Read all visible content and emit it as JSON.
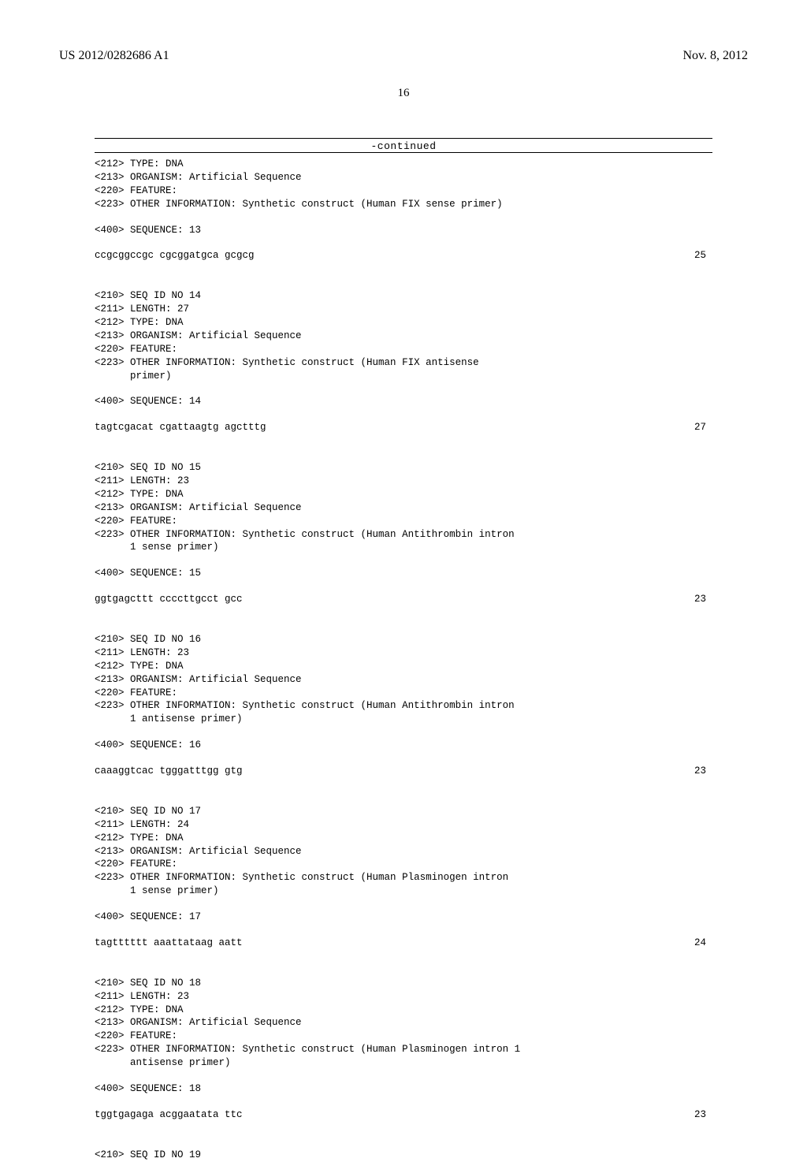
{
  "header": {
    "left": "US 2012/0282686 A1",
    "right": "Nov. 8, 2012"
  },
  "page_number": "16",
  "continued_label": "-continued",
  "entries": [
    {
      "meta": [
        "<212> TYPE: DNA",
        "<213> ORGANISM: Artificial Sequence",
        "<220> FEATURE:",
        "<223> OTHER INFORMATION: Synthetic construct (Human FIX sense primer)"
      ],
      "seq_header": "<400> SEQUENCE: 13",
      "sequence": "ccgcggccgc cgcggatgca gcgcg",
      "length": "25"
    },
    {
      "meta": [
        "<210> SEQ ID NO 14",
        "<211> LENGTH: 27",
        "<212> TYPE: DNA",
        "<213> ORGANISM: Artificial Sequence",
        "<220> FEATURE:",
        "<223> OTHER INFORMATION: Synthetic construct (Human FIX antisense",
        "      primer)"
      ],
      "seq_header": "<400> SEQUENCE: 14",
      "sequence": "tagtcgacat cgattaagtg agctttg",
      "length": "27"
    },
    {
      "meta": [
        "<210> SEQ ID NO 15",
        "<211> LENGTH: 23",
        "<212> TYPE: DNA",
        "<213> ORGANISM: Artificial Sequence",
        "<220> FEATURE:",
        "<223> OTHER INFORMATION: Synthetic construct (Human Antithrombin intron",
        "      1 sense primer)"
      ],
      "seq_header": "<400> SEQUENCE: 15",
      "sequence": "ggtgagcttt ccccttgcct gcc",
      "length": "23"
    },
    {
      "meta": [
        "<210> SEQ ID NO 16",
        "<211> LENGTH: 23",
        "<212> TYPE: DNA",
        "<213> ORGANISM: Artificial Sequence",
        "<220> FEATURE:",
        "<223> OTHER INFORMATION: Synthetic construct (Human Antithrombin intron",
        "      1 antisense primer)"
      ],
      "seq_header": "<400> SEQUENCE: 16",
      "sequence": "caaaggtcac tgggatttgg gtg",
      "length": "23"
    },
    {
      "meta": [
        "<210> SEQ ID NO 17",
        "<211> LENGTH: 24",
        "<212> TYPE: DNA",
        "<213> ORGANISM: Artificial Sequence",
        "<220> FEATURE:",
        "<223> OTHER INFORMATION: Synthetic construct (Human Plasminogen intron",
        "      1 sense primer)"
      ],
      "seq_header": "<400> SEQUENCE: 17",
      "sequence": "tagtttttt aaattataag aatt",
      "length": "24"
    },
    {
      "meta": [
        "<210> SEQ ID NO 18",
        "<211> LENGTH: 23",
        "<212> TYPE: DNA",
        "<213> ORGANISM: Artificial Sequence",
        "<220> FEATURE:",
        "<223> OTHER INFORMATION: Synthetic construct (Human Plasminogen intron 1",
        "      antisense primer)"
      ],
      "seq_header": "<400> SEQUENCE: 18",
      "sequence": "tggtgagaga acggaatata ttc",
      "length": "23"
    }
  ],
  "trailing": "<210> SEQ ID NO 19"
}
